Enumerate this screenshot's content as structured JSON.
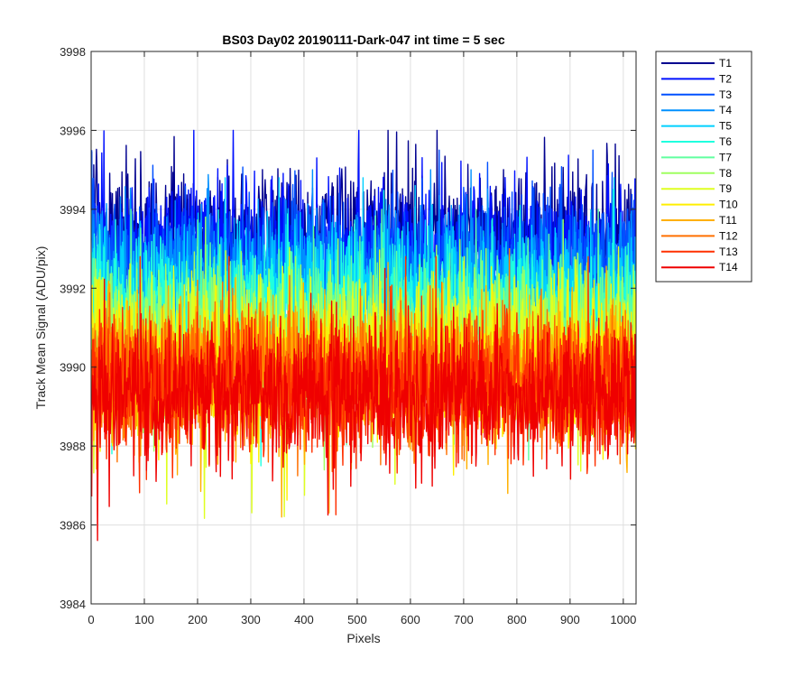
{
  "chart_data": {
    "type": "line",
    "title": "BS03 Day02 20190111-Dark-047 int time = 5 sec",
    "xlabel": "Pixels",
    "ylabel": "Track Mean Signal (ADU/pix)",
    "xlim": [
      0,
      1024
    ],
    "ylim": [
      3984,
      3998
    ],
    "xticks": [
      0,
      100,
      200,
      300,
      400,
      500,
      600,
      700,
      800,
      900,
      1000
    ],
    "yticks": [
      3984,
      3986,
      3988,
      3990,
      3992,
      3994,
      3996,
      3998
    ],
    "xtick_labels": [
      "0",
      "100",
      "200",
      "300",
      "400",
      "500",
      "600",
      "700",
      "800",
      "900",
      "1000"
    ],
    "ytick_labels": [
      "3984",
      "3986",
      "3988",
      "3990",
      "3992",
      "3994",
      "3996",
      "3998"
    ],
    "grid": true,
    "legend_position": "outside-top-right",
    "x": {
      "start": 1,
      "end": 1024,
      "step": 1
    },
    "series": [
      {
        "name": "T1",
        "color": "#00008f",
        "mean": 3993.3,
        "noise": 0.9,
        "min": 3990.0,
        "max": 3996.0
      },
      {
        "name": "T2",
        "color": "#0010ff",
        "mean": 3993.0,
        "noise": 0.9,
        "min": 3989.8,
        "max": 3996.0
      },
      {
        "name": "T3",
        "color": "#0050ff",
        "mean": 3992.6,
        "noise": 0.9,
        "min": 3989.5,
        "max": 3995.5
      },
      {
        "name": "T4",
        "color": "#0090ff",
        "mean": 3992.2,
        "noise": 0.9,
        "min": 3989.0,
        "max": 3995.0
      },
      {
        "name": "T5",
        "color": "#00d0ff",
        "mean": 3991.8,
        "noise": 0.9,
        "min": 3988.5,
        "max": 3994.8
      },
      {
        "name": "T6",
        "color": "#20ffdf",
        "mean": 3991.4,
        "noise": 0.9,
        "min": 3987.5,
        "max": 3994.5
      },
      {
        "name": "T7",
        "color": "#60ff9f",
        "mean": 3991.0,
        "noise": 0.9,
        "min": 3987.0,
        "max": 3994.0
      },
      {
        "name": "T8",
        "color": "#9fff60",
        "mean": 3990.7,
        "noise": 0.9,
        "min": 3986.5,
        "max": 3993.8
      },
      {
        "name": "T9",
        "color": "#dfff20",
        "mean": 3990.4,
        "noise": 0.9,
        "min": 3986.0,
        "max": 3993.5
      },
      {
        "name": "T10",
        "color": "#ffef00",
        "mean": 3990.1,
        "noise": 0.9,
        "min": 3986.5,
        "max": 3993.2
      },
      {
        "name": "T11",
        "color": "#ffb000",
        "mean": 3989.9,
        "noise": 0.9,
        "min": 3986.2,
        "max": 3993.0
      },
      {
        "name": "T12",
        "color": "#ff7000",
        "mean": 3989.7,
        "noise": 0.9,
        "min": 3986.2,
        "max": 3993.0
      },
      {
        "name": "T13",
        "color": "#ff3000",
        "mean": 3989.5,
        "noise": 0.9,
        "min": 3986.0,
        "max": 3992.8
      },
      {
        "name": "T14",
        "color": "#ef0000",
        "mean": 3989.3,
        "noise": 0.9,
        "min": 3985.1,
        "max": 3992.5
      }
    ]
  }
}
